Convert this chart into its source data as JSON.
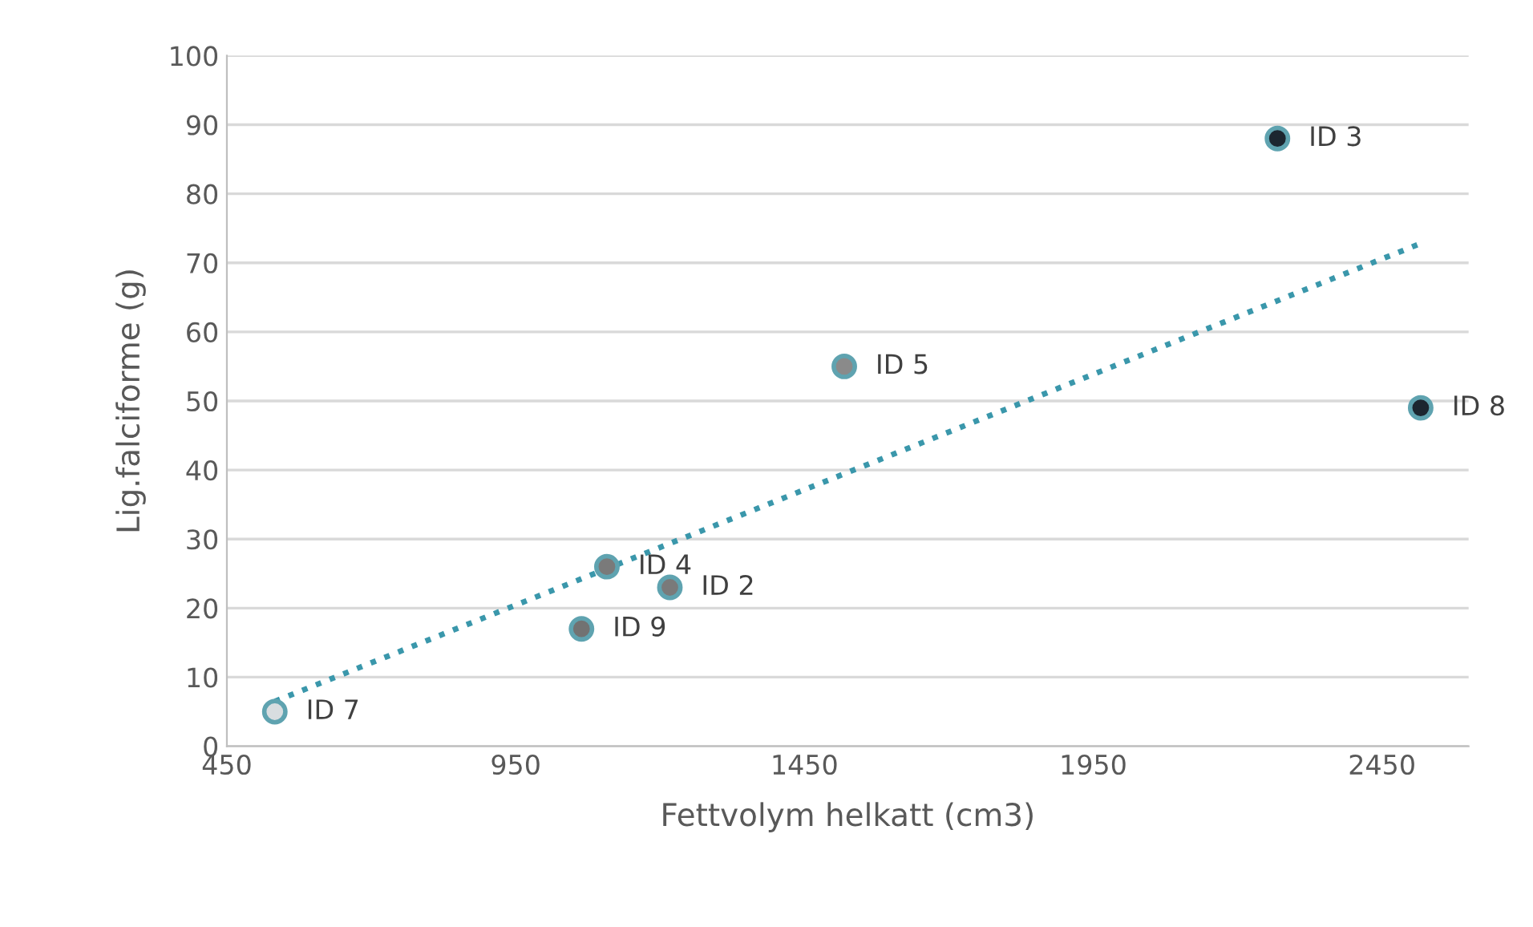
{
  "chart_data": {
    "type": "scatter",
    "xlabel": "Fettvolym helkatt (cm3)",
    "ylabel": "Lig.falciforme (g)",
    "xlim": [
      450,
      2600
    ],
    "xticks": [
      450,
      950,
      1450,
      1950,
      2450
    ],
    "ylim": [
      0,
      100
    ],
    "yticks": [
      0,
      10,
      20,
      30,
      40,
      50,
      60,
      70,
      80,
      90,
      100
    ],
    "grid": "y",
    "marker": "circle",
    "series": [
      {
        "x": [
          1217,
          2269,
          1108,
          1519,
          533,
          2517,
          1064
        ],
        "values": [
          23,
          88,
          26,
          55,
          5,
          49,
          17
        ],
        "colors": [
          "#7a7a7a",
          "#1c2630",
          "#7a7a7a",
          "#8a8a8a",
          "#d8dde0",
          "#1c2630",
          "#727272"
        ],
        "color": "#5fa3b0"
      },
      {
        "type": "line",
        "x": [
          533,
          2517
        ],
        "values": [
          6.5,
          72.8
        ],
        "color": "#3a97ab",
        "line_style": "dotted",
        "marker": "none"
      }
    ],
    "annotations": [
      {
        "text": "ID 2",
        "x": 1217,
        "y": 23
      },
      {
        "text": "ID 3",
        "x": 2269,
        "y": 88
      },
      {
        "text": "ID 4",
        "x": 1108,
        "y": 26
      },
      {
        "text": "ID 5",
        "x": 1519,
        "y": 55
      },
      {
        "text": "ID 7",
        "x": 533,
        "y": 5
      },
      {
        "text": "ID 8",
        "x": 2517,
        "y": 49
      },
      {
        "text": "ID 9",
        "x": 1064,
        "y": 17
      }
    ]
  }
}
